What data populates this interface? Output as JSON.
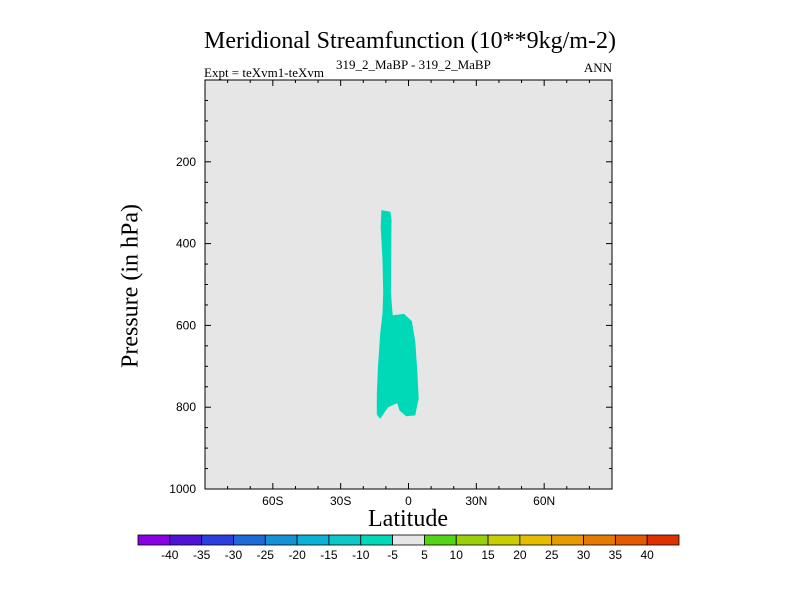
{
  "chart_data": {
    "type": "contour",
    "title": "Meridional Streamfunction (10**9kg/m-2)",
    "subtitle_left": "Expt = teXvm1-teXvm",
    "subtitle_center": "319_2_MaBP - 319_2_MaBP",
    "subtitle_right": "ANN",
    "xlabel": "Latitude",
    "ylabel": "Pressure (in hPa)",
    "xlim": [
      -90,
      90
    ],
    "ylim": [
      1000,
      0
    ],
    "x_ticks": [
      {
        "value": -60,
        "label": "60S"
      },
      {
        "value": -30,
        "label": "30S"
      },
      {
        "value": 0,
        "label": "0"
      },
      {
        "value": 30,
        "label": "30N"
      },
      {
        "value": 60,
        "label": "60N"
      }
    ],
    "y_ticks": [
      {
        "value": 200,
        "label": "200"
      },
      {
        "value": 400,
        "label": "400"
      },
      {
        "value": 600,
        "label": "600"
      },
      {
        "value": 800,
        "label": "800"
      },
      {
        "value": 1000,
        "label": "1000"
      }
    ],
    "background_level": "-5 to 5",
    "background_color": "#e6e6e6",
    "contour_regions": [
      {
        "level": "-10 to -5",
        "color": "#00d9b8",
        "polygon": [
          [
            -12,
            318
          ],
          [
            -8,
            322
          ],
          [
            -7.5,
            340
          ],
          [
            -7.8,
            520
          ],
          [
            -7,
            575
          ],
          [
            -2,
            572
          ],
          [
            1.5,
            590
          ],
          [
            3,
            640
          ],
          [
            4,
            720
          ],
          [
            4.5,
            780
          ],
          [
            3.5,
            805
          ],
          [
            3,
            820
          ],
          [
            -1,
            822
          ],
          [
            -4,
            808
          ],
          [
            -5,
            790
          ],
          [
            -9,
            800
          ],
          [
            -12.5,
            828
          ],
          [
            -14,
            818
          ],
          [
            -14,
            770
          ],
          [
            -13.5,
            700
          ],
          [
            -12.5,
            620
          ],
          [
            -11.5,
            570
          ],
          [
            -11.2,
            520
          ],
          [
            -11.5,
            440
          ],
          [
            -12.3,
            360
          ]
        ]
      }
    ],
    "colorbar": {
      "levels": [
        "-40",
        "-35",
        "-30",
        "-25",
        "-20",
        "-15",
        "-10",
        "-5",
        "5",
        "10",
        "15",
        "20",
        "25",
        "30",
        "35",
        "40"
      ],
      "colors": [
        "#8a00e6",
        "#4f12d6",
        "#2b3ee0",
        "#1c6bd8",
        "#1591d6",
        "#0cb1d8",
        "#0bc9c9",
        "#00d9b8",
        "#e6e6e6",
        "#55d317",
        "#9ad00a",
        "#c9ce00",
        "#e6bb00",
        "#e69a00",
        "#e67a00",
        "#e45a00",
        "#e03000"
      ]
    }
  }
}
